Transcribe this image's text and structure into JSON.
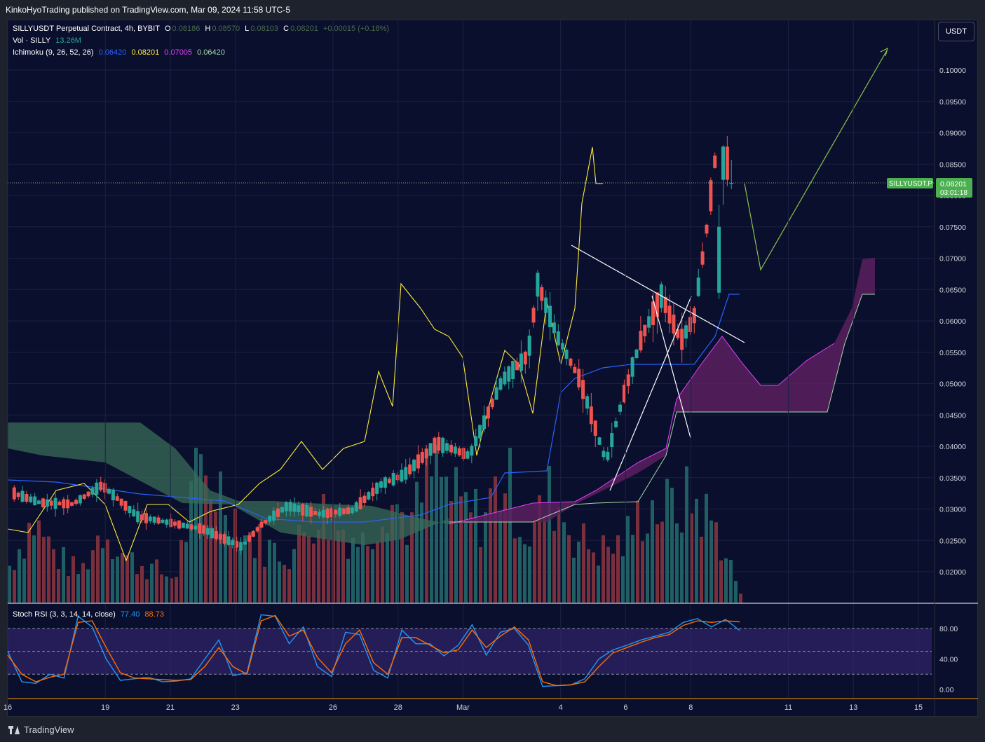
{
  "header": {
    "published": "KinkoHyoTrading published on TradingView.com, Mar 09, 2024 11:58 UTC-5"
  },
  "legend": {
    "symbol": "SILLYUSDT Perpetual Contract, 4h, BYBIT",
    "o_label": "O",
    "o": "0.08186",
    "h_label": "H",
    "h": "0.08570",
    "l_label": "L",
    "l": "0.08103",
    "c_label": "C",
    "c": "0.08201",
    "change": "+0.00015 (+0.18%)",
    "vol_label": "Vol · SILLY",
    "vol": "13.26M",
    "ichimoku_label": "Ichimoku (9, 26, 52, 26)",
    "ichimoku_values": [
      "0.06420",
      "0.08201",
      "0.07005",
      "0.06420"
    ],
    "stoch_label": "Stoch RSI (3, 3, 14, 14, close)",
    "stoch_k": "77.40",
    "stoch_d": "88.73"
  },
  "currency_button": "USDT",
  "price_tag": {
    "symbol": "SILLYUSDT.P",
    "price": "0.08201",
    "countdown": "03:01:18"
  },
  "footer": {
    "brand": "TradingView"
  },
  "colors": {
    "background": "#0a0f2d",
    "up": "#26a69a",
    "down": "#ef5350",
    "tenkan": "#2962ff",
    "kijun": "#ffeb3b",
    "chikou": "#ffeb3b",
    "span_a": "#a5d6a7",
    "span_b": "#e040fb",
    "cloud_bull": "#3a6b58",
    "cloud_bear": "#5a1f5e",
    "stoch_k": "#2196f3",
    "stoch_d": "#ff6d00",
    "projection": "#8bc34a",
    "trendline": "#ffffff",
    "price_tag": "#4caf50"
  },
  "chart_data": [
    {
      "type": "candlestick",
      "title": "SILLYUSDT Perpetual Contract, 4h, BYBIT",
      "y_axis_ticks": [
        "0.10000",
        "0.09500",
        "0.09000",
        "0.08500",
        "0.08000",
        "0.07500",
        "0.07000",
        "0.06500",
        "0.06000",
        "0.05500",
        "0.05000",
        "0.04500",
        "0.04000",
        "0.03500",
        "0.03000",
        "0.02500",
        "0.02000"
      ],
      "ylim": [
        0.0165,
        0.1045
      ],
      "x_axis_ticks": [
        {
          "label": "16",
          "day": 16
        },
        {
          "label": "19",
          "day": 19
        },
        {
          "label": "21",
          "day": 21
        },
        {
          "label": "23",
          "day": 23
        },
        {
          "label": "26",
          "day": 26
        },
        {
          "label": "28",
          "day": 28
        },
        {
          "label": "Mar",
          "day": 30
        },
        {
          "label": "4",
          "day": 33
        },
        {
          "label": "6",
          "day": 35
        },
        {
          "label": "8",
          "day": 37
        },
        {
          "label": "11",
          "day": 40
        },
        {
          "label": "13",
          "day": 42
        },
        {
          "label": "15",
          "day": 44
        }
      ],
      "x_range_days": [
        16,
        44.2
      ],
      "last_price": 0.08201,
      "candles_sampled": [
        {
          "day": 16.2,
          "o": 0.0312,
          "h": 0.0335,
          "l": 0.0305,
          "c": 0.0325
        },
        {
          "day": 17.0,
          "o": 0.0318,
          "h": 0.0328,
          "l": 0.0305,
          "c": 0.031
        },
        {
          "day": 18.0,
          "o": 0.0302,
          "h": 0.0315,
          "l": 0.0295,
          "c": 0.0308
        },
        {
          "day": 18.9,
          "o": 0.0325,
          "h": 0.0345,
          "l": 0.032,
          "c": 0.0338
        },
        {
          "day": 20.0,
          "o": 0.0298,
          "h": 0.0305,
          "l": 0.0282,
          "c": 0.0288
        },
        {
          "day": 21.2,
          "o": 0.0282,
          "h": 0.029,
          "l": 0.0272,
          "c": 0.0276
        },
        {
          "day": 22.0,
          "o": 0.027,
          "h": 0.0278,
          "l": 0.0262,
          "c": 0.0268
        },
        {
          "day": 23.2,
          "o": 0.0235,
          "h": 0.0255,
          "l": 0.0225,
          "c": 0.024
        },
        {
          "day": 23.8,
          "o": 0.0252,
          "h": 0.0282,
          "l": 0.0248,
          "c": 0.0275
        },
        {
          "day": 24.6,
          "o": 0.0285,
          "h": 0.0315,
          "l": 0.028,
          "c": 0.0305
        },
        {
          "day": 25.6,
          "o": 0.0295,
          "h": 0.0308,
          "l": 0.0285,
          "c": 0.0292
        },
        {
          "day": 26.6,
          "o": 0.0302,
          "h": 0.0318,
          "l": 0.0292,
          "c": 0.0298
        },
        {
          "day": 27.5,
          "o": 0.0315,
          "h": 0.035,
          "l": 0.031,
          "c": 0.034
        },
        {
          "day": 28.2,
          "o": 0.0325,
          "h": 0.036,
          "l": 0.0315,
          "c": 0.0355
        },
        {
          "day": 29.2,
          "o": 0.0375,
          "h": 0.0415,
          "l": 0.0362,
          "c": 0.0405
        },
        {
          "day": 30.2,
          "o": 0.039,
          "h": 0.0415,
          "l": 0.0375,
          "c": 0.0385
        },
        {
          "day": 31.2,
          "o": 0.048,
          "h": 0.0535,
          "l": 0.0445,
          "c": 0.0505
        },
        {
          "day": 32.0,
          "o": 0.0472,
          "h": 0.0555,
          "l": 0.0435,
          "c": 0.0545
        },
        {
          "day": 32.3,
          "o": 0.06,
          "h": 0.0715,
          "l": 0.055,
          "c": 0.066
        },
        {
          "day": 32.9,
          "o": 0.06,
          "h": 0.0622,
          "l": 0.0565,
          "c": 0.0575
        },
        {
          "day": 33.6,
          "o": 0.0548,
          "h": 0.057,
          "l": 0.0495,
          "c": 0.0505
        },
        {
          "day": 34.4,
          "o": 0.0402,
          "h": 0.0425,
          "l": 0.036,
          "c": 0.0375
        },
        {
          "day": 34.9,
          "o": 0.0418,
          "h": 0.048,
          "l": 0.0412,
          "c": 0.0475
        },
        {
          "day": 35.5,
          "o": 0.0462,
          "h": 0.058,
          "l": 0.046,
          "c": 0.0575
        },
        {
          "day": 36.1,
          "o": 0.0492,
          "h": 0.0648,
          "l": 0.048,
          "c": 0.064
        },
        {
          "day": 36.7,
          "o": 0.0548,
          "h": 0.0578,
          "l": 0.0525,
          "c": 0.0568
        },
        {
          "day": 37.1,
          "o": 0.0618,
          "h": 0.0675,
          "l": 0.059,
          "c": 0.0605
        },
        {
          "day": 37.5,
          "o": 0.0645,
          "h": 0.0785,
          "l": 0.0635,
          "c": 0.075
        },
        {
          "day": 37.8,
          "o": 0.0825,
          "h": 0.088,
          "l": 0.0785,
          "c": 0.0878
        },
        {
          "day": 38.0,
          "o": 0.0878,
          "h": 0.0895,
          "l": 0.0815,
          "c": 0.0825
        },
        {
          "day": 38.25,
          "o": 0.08186,
          "h": 0.0857,
          "l": 0.08103,
          "c": 0.08201
        }
      ]
    },
    {
      "type": "bar",
      "title": "Vol · SILLY",
      "last_value": "13.26M",
      "scale": "relative",
      "values_sampled": [
        0.28,
        0.62,
        0.35,
        0.22,
        0.58,
        0.33,
        0.26,
        0.18,
        0.95,
        0.86,
        0.52,
        0.41,
        0.37,
        0.71,
        0.58,
        0.45,
        0.83,
        0.58,
        1.0,
        0.73,
        0.64,
        0.97,
        0.48,
        0.83,
        0.49,
        0.39,
        0.44,
        0.73,
        0.7,
        0.78,
        0.55,
        0.07
      ]
    },
    {
      "type": "line",
      "title": "Stoch RSI (3, 3, 14, 14, close)",
      "ylim": [
        0,
        100
      ],
      "y_axis_ticks": [
        "80.00",
        "40.00",
        "0.00"
      ],
      "bands": [
        80,
        50,
        20
      ],
      "series": [
        {
          "name": "K",
          "last": 77.4,
          "values_sampled": [
            50,
            10,
            8,
            20,
            15,
            96,
            82,
            40,
            12,
            14,
            16,
            10,
            11,
            14,
            40,
            65,
            18,
            22,
            98,
            96,
            60,
            82,
            30,
            17,
            75,
            72,
            25,
            15,
            78,
            60,
            60,
            44,
            58,
            85,
            45,
            75,
            80,
            58,
            4,
            5,
            6,
            14,
            40,
            52,
            58,
            65,
            70,
            75,
            88,
            93,
            82,
            92,
            77.4
          ]
        },
        {
          "name": "D",
          "last": 88.73,
          "values_sampled": [
            45,
            20,
            10,
            16,
            20,
            88,
            90,
            55,
            22,
            15,
            14,
            13,
            12,
            13,
            30,
            55,
            30,
            20,
            90,
            97,
            70,
            78,
            42,
            22,
            60,
            78,
            35,
            20,
            68,
            68,
            58,
            48,
            52,
            78,
            55,
            70,
            82,
            65,
            10,
            5,
            6,
            10,
            30,
            48,
            55,
            62,
            68,
            72,
            84,
            90,
            88,
            90,
            88.73
          ]
        }
      ]
    }
  ]
}
